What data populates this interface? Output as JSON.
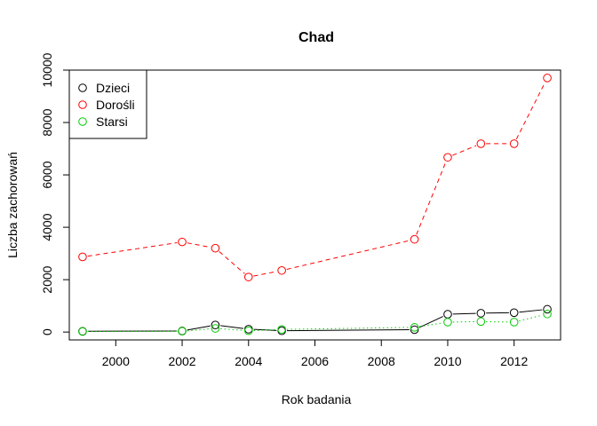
{
  "chart_data": {
    "type": "line",
    "title": "Chad",
    "xlabel": "Rok badania",
    "ylabel": "Liczba zachorowań",
    "xlim": [
      1998.6,
      2013.4
    ],
    "ylim": [
      -300,
      10000
    ],
    "x_ticks": [
      2000,
      2002,
      2004,
      2006,
      2008,
      2010,
      2012
    ],
    "y_ticks": [
      0,
      2000,
      4000,
      6000,
      8000,
      10000
    ],
    "grid": false,
    "legend_position": "top-left",
    "x": [
      1999,
      2002,
      2003,
      2004,
      2005,
      2009,
      2010,
      2011,
      2012,
      2013
    ],
    "series": [
      {
        "name": "Dzieci",
        "color": "#000000",
        "line_style": "solid",
        "values": [
          30,
          40,
          270,
          110,
          50,
          90,
          680,
          720,
          740,
          870
        ]
      },
      {
        "name": "Dorośli",
        "color": "#ff0000",
        "line_style": "dashed",
        "values": [
          2870,
          3440,
          3200,
          2100,
          2350,
          3540,
          6670,
          7190,
          7190,
          9700
        ]
      },
      {
        "name": "Starsi",
        "color": "#00cd00",
        "line_style": "dotted",
        "values": [
          20,
          30,
          140,
          50,
          100,
          180,
          380,
          400,
          380,
          690
        ]
      }
    ]
  }
}
